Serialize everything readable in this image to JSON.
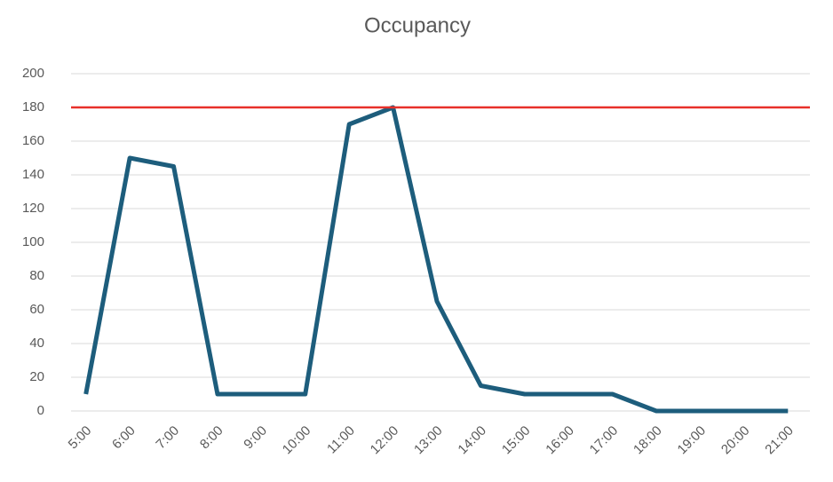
{
  "chart_data": {
    "type": "line",
    "title": "Occupancy",
    "categories": [
      "5:00",
      "6:00",
      "7:00",
      "8:00",
      "9:00",
      "10:00",
      "11:00",
      "12:00",
      "13:00",
      "14:00",
      "15:00",
      "16:00",
      "17:00",
      "18:00",
      "19:00",
      "20:00",
      "21:00"
    ],
    "series": [
      {
        "color": "#1d5d7c",
        "values": [
          10,
          150,
          145,
          10,
          10,
          10,
          170,
          180,
          65,
          15,
          10,
          10,
          10,
          0,
          0,
          0,
          0
        ]
      }
    ],
    "reference_line": {
      "value": 180,
      "color": "#e8302a"
    },
    "ylim": [
      0,
      200
    ],
    "yticks": [
      0,
      20,
      40,
      60,
      80,
      100,
      120,
      140,
      160,
      180,
      200
    ],
    "grid": true
  }
}
